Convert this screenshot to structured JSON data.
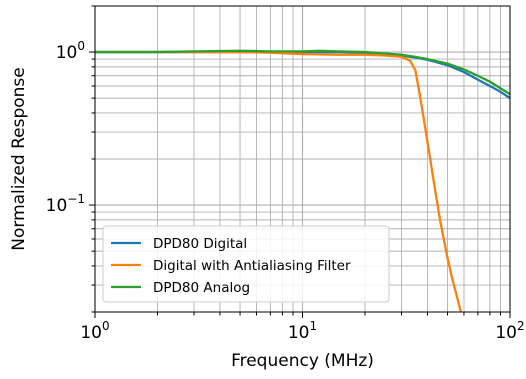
{
  "chart_data": {
    "type": "line",
    "xlabel": "Frequency (MHz)",
    "ylabel": "Normalized Response",
    "x_scale": "log",
    "y_scale": "log",
    "xlim": [
      1,
      100
    ],
    "ylim": [
      0.02,
      2.0
    ],
    "grid": true,
    "legend_position": "lower-left",
    "x_ticks": [
      {
        "value": 1,
        "base": "10",
        "exp": "0"
      },
      {
        "value": 10,
        "base": "10",
        "exp": "1"
      },
      {
        "value": 100,
        "base": "10",
        "exp": "2"
      }
    ],
    "y_ticks": [
      {
        "value": 0.1,
        "base": "10",
        "exp": "−1"
      },
      {
        "value": 1,
        "base": "10",
        "exp": "0"
      }
    ],
    "series": [
      {
        "name": "DPD80 Digital",
        "color": "#1f77b4",
        "x": [
          1,
          2,
          3,
          5,
          7,
          10,
          15,
          20,
          25,
          30,
          35,
          40,
          50,
          60,
          70,
          80,
          90,
          100
        ],
        "y": [
          1.0,
          1.0,
          1.0,
          1.0,
          1.0,
          1.0,
          1.0,
          0.99,
          0.97,
          0.95,
          0.92,
          0.89,
          0.82,
          0.74,
          0.66,
          0.6,
          0.55,
          0.5
        ]
      },
      {
        "name": "Digital with Antialiasing Filter",
        "color": "#ff7f0e",
        "x": [
          1,
          2,
          3,
          5,
          7,
          10,
          15,
          20,
          25,
          30,
          33,
          35,
          37,
          40,
          43,
          46,
          50,
          53,
          56,
          58
        ],
        "y": [
          1.0,
          1.0,
          1.0,
          1.0,
          0.99,
          0.97,
          0.96,
          0.96,
          0.95,
          0.93,
          0.88,
          0.76,
          0.5,
          0.26,
          0.14,
          0.08,
          0.045,
          0.032,
          0.024,
          0.02
        ]
      },
      {
        "name": "DPD80 Analog",
        "color": "#2ca02c",
        "x": [
          1,
          2,
          3,
          5,
          7,
          10,
          12,
          15,
          20,
          25,
          30,
          35,
          40,
          50,
          60,
          70,
          80,
          90,
          100
        ],
        "y": [
          1.0,
          1.0,
          1.01,
          1.02,
          1.01,
          1.01,
          1.02,
          1.01,
          1.0,
          0.98,
          0.96,
          0.93,
          0.9,
          0.84,
          0.77,
          0.7,
          0.64,
          0.58,
          0.53
        ]
      }
    ]
  }
}
